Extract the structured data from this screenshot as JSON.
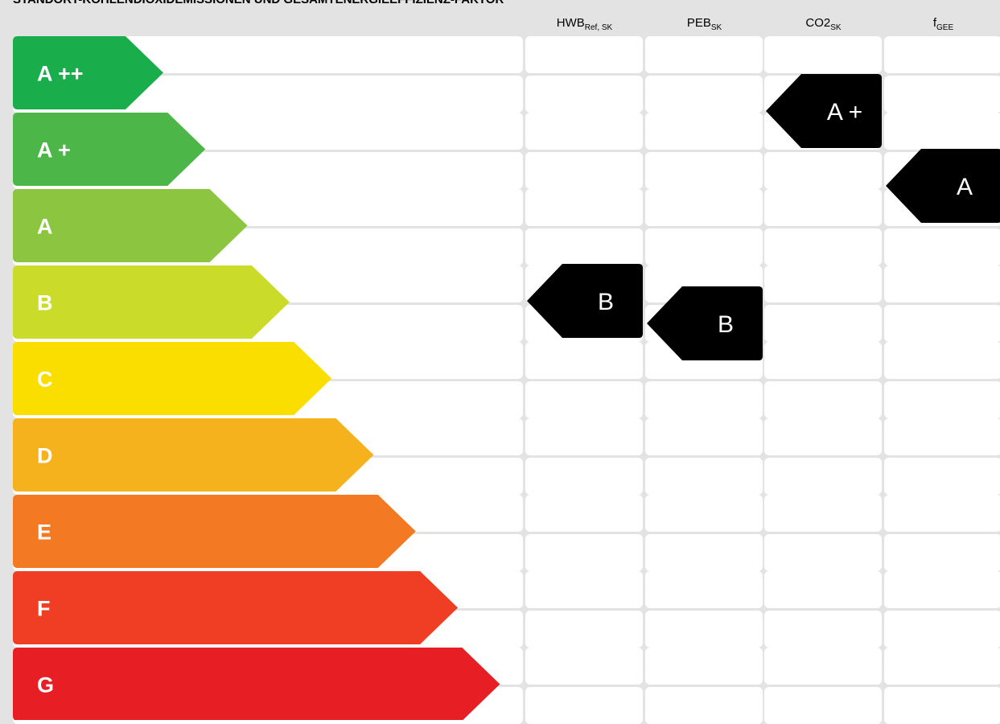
{
  "title": "STANDORT-KOHLENDIOXIDEMISSIONEN UND GESAMTENERGIEEFFIZIENZ-FAKTOR",
  "columns": [
    {
      "base": "HWB",
      "sub": "Ref, SK"
    },
    {
      "base": "PEB",
      "sub": "SK"
    },
    {
      "base": "CO2",
      "sub": "SK"
    },
    {
      "base": "f",
      "sub": "GEE"
    }
  ],
  "bands": [
    {
      "label": "A ++",
      "color": "#1aad4b"
    },
    {
      "label": "A +",
      "color": "#4cb748"
    },
    {
      "label": "A",
      "color": "#8cc640"
    },
    {
      "label": "B",
      "color": "#cbdb2a"
    },
    {
      "label": "C",
      "color": "#fade00"
    },
    {
      "label": "D",
      "color": "#f5b21d"
    },
    {
      "label": "E",
      "color": "#f37922"
    },
    {
      "label": "F",
      "color": "#ef3e23"
    },
    {
      "label": "G",
      "color": "#e81e25"
    }
  ],
  "ratings": [
    {
      "column": "HWB",
      "label": "B"
    },
    {
      "column": "PEB",
      "label": "B"
    },
    {
      "column": "CO2",
      "label": "A +"
    },
    {
      "column": "f",
      "label": "A"
    }
  ],
  "marker_color": "#000000"
}
